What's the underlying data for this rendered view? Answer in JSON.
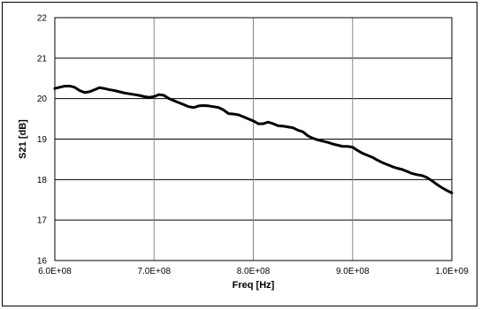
{
  "chart_data": {
    "type": "line",
    "title": "",
    "xlabel": "Freq [Hz]",
    "ylabel": "S21 [dB]",
    "xlim": [
      600000000,
      1000000000
    ],
    "ylim": [
      16,
      22
    ],
    "x_ticks": [
      600000000,
      700000000,
      800000000,
      900000000,
      1000000000
    ],
    "x_tick_labels": [
      "6.0E+08",
      "7.0E+08",
      "8.0E+08",
      "9.0E+08",
      "1.0E+09"
    ],
    "y_ticks": [
      16,
      17,
      18,
      19,
      20,
      21,
      22
    ],
    "y_tick_labels": [
      "16",
      "17",
      "18",
      "19",
      "20",
      "21",
      "22"
    ],
    "grid": true,
    "legend": "none",
    "series": [
      {
        "color": "#000000",
        "x": [
          600000000,
          605000000,
          610000000,
          615000000,
          620000000,
          625000000,
          630000000,
          635000000,
          640000000,
          645000000,
          650000000,
          655000000,
          660000000,
          665000000,
          670000000,
          675000000,
          680000000,
          685000000,
          690000000,
          695000000,
          700000000,
          705000000,
          710000000,
          715000000,
          720000000,
          725000000,
          730000000,
          735000000,
          740000000,
          745000000,
          750000000,
          755000000,
          760000000,
          765000000,
          770000000,
          775000000,
          780000000,
          785000000,
          790000000,
          795000000,
          800000000,
          805000000,
          810000000,
          815000000,
          820000000,
          825000000,
          830000000,
          835000000,
          840000000,
          845000000,
          850000000,
          855000000,
          860000000,
          865000000,
          870000000,
          875000000,
          880000000,
          885000000,
          890000000,
          895000000,
          900000000,
          905000000,
          910000000,
          915000000,
          920000000,
          925000000,
          930000000,
          935000000,
          940000000,
          945000000,
          950000000,
          955000000,
          960000000,
          965000000,
          970000000,
          975000000,
          980000000,
          985000000,
          990000000,
          995000000,
          1000000000
        ],
        "y": [
          20.25,
          20.28,
          20.31,
          20.31,
          20.28,
          20.2,
          20.15,
          20.17,
          20.22,
          20.27,
          20.25,
          20.22,
          20.2,
          20.17,
          20.14,
          20.12,
          20.1,
          20.08,
          20.05,
          20.03,
          20.05,
          20.1,
          20.08,
          20.0,
          19.95,
          19.9,
          19.85,
          19.8,
          19.78,
          19.82,
          19.83,
          19.82,
          19.8,
          19.78,
          19.72,
          19.63,
          19.62,
          19.6,
          19.55,
          19.5,
          19.45,
          19.38,
          19.38,
          19.42,
          19.38,
          19.33,
          19.32,
          19.3,
          19.28,
          19.22,
          19.18,
          19.08,
          19.02,
          18.98,
          18.95,
          18.92,
          18.88,
          18.85,
          18.82,
          18.82,
          18.8,
          18.72,
          18.65,
          18.6,
          18.55,
          18.48,
          18.42,
          18.37,
          18.32,
          18.28,
          18.25,
          18.2,
          18.15,
          18.12,
          18.1,
          18.05,
          17.97,
          17.88,
          17.8,
          17.73,
          17.67
        ]
      }
    ]
  }
}
